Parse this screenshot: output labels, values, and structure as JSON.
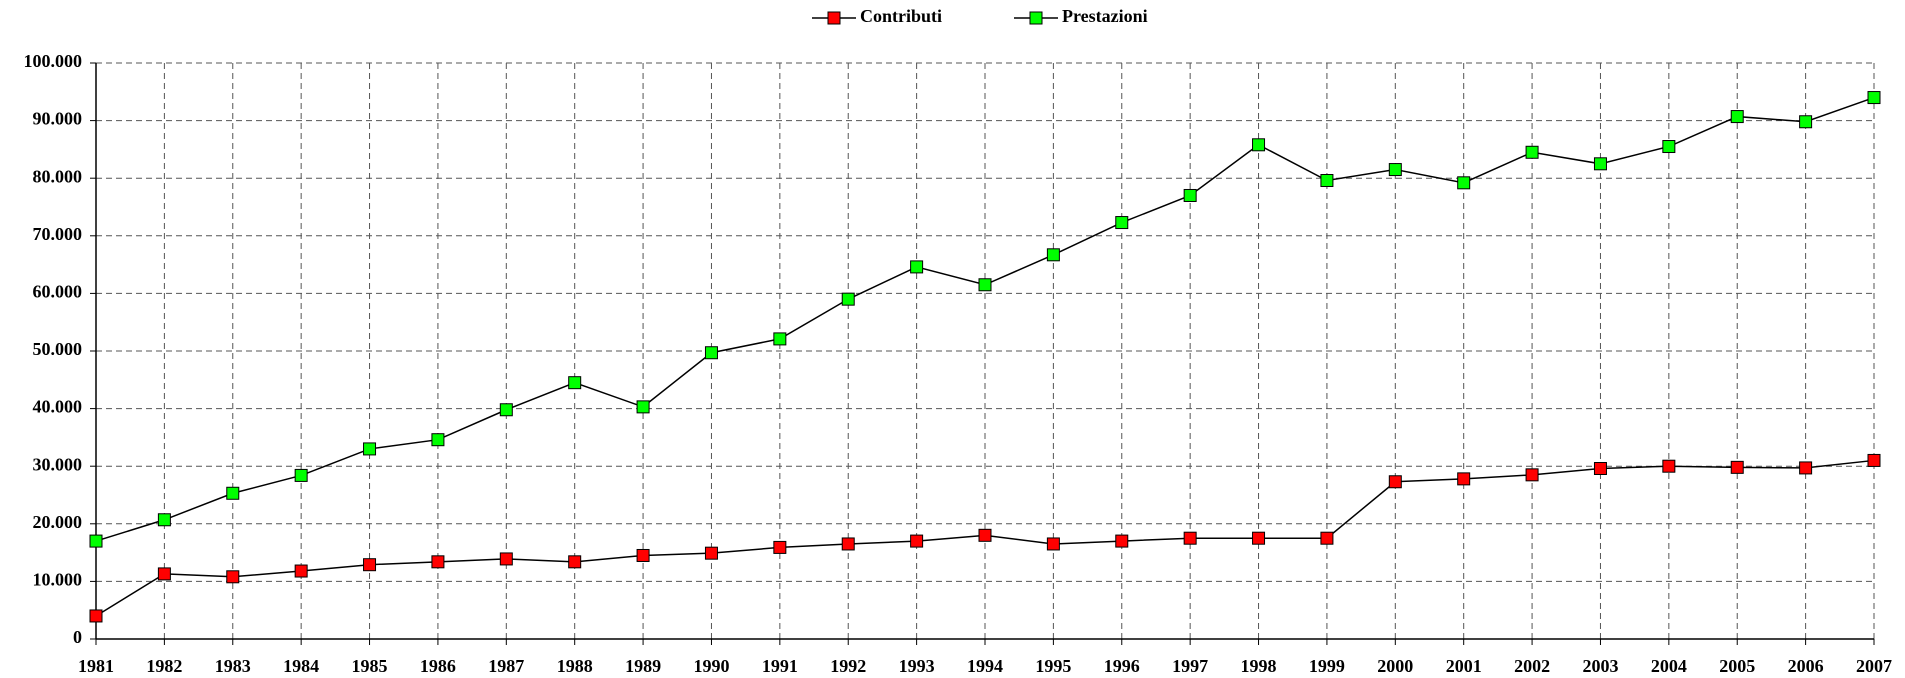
{
  "chart_data": {
    "type": "line",
    "categories": [
      "1981",
      "1982",
      "1983",
      "1984",
      "1985",
      "1986",
      "1987",
      "1988",
      "1989",
      "1990",
      "1991",
      "1992",
      "1993",
      "1994",
      "1995",
      "1996",
      "1997",
      "1998",
      "1999",
      "2000",
      "2001",
      "2002",
      "2003",
      "2004",
      "2005",
      "2006",
      "2007"
    ],
    "series": [
      {
        "name": "Contributi",
        "color": "#ff0000",
        "values": [
          4000,
          11300,
          10800,
          11800,
          12900,
          13400,
          13900,
          13400,
          14500,
          14900,
          15900,
          16500,
          17000,
          18000,
          16500,
          17000,
          17500,
          17500,
          17500,
          27300,
          27800,
          28500,
          29600,
          30000,
          29800,
          29700,
          31000
        ]
      },
      {
        "name": "Prestazioni",
        "color": "#00ff00",
        "values": [
          17000,
          20700,
          25300,
          28400,
          33000,
          34600,
          39800,
          44500,
          40300,
          49700,
          52100,
          59000,
          64600,
          61500,
          66700,
          72300,
          77000,
          85800,
          79600,
          81500,
          79200,
          84500,
          82500,
          85500,
          90700,
          89800,
          94000
        ]
      }
    ],
    "ylim": [
      0,
      100000
    ],
    "yticks": [
      0,
      {
        "value": 10000,
        "label": "10.000"
      },
      {
        "value": 20000,
        "label": "20.000"
      },
      {
        "value": 30000,
        "label": "30.000"
      },
      {
        "value": 40000,
        "label": "40.000"
      },
      {
        "value": 50000,
        "label": "50.000"
      },
      {
        "value": 60000,
        "label": "60.000"
      },
      {
        "value": 70000,
        "label": "70.000"
      },
      {
        "value": 80000,
        "label": "80.000"
      },
      {
        "value": 90000,
        "label": "90.000"
      },
      {
        "value": 100000,
        "label": "100.000"
      }
    ],
    "grid": true,
    "legend": "top"
  }
}
